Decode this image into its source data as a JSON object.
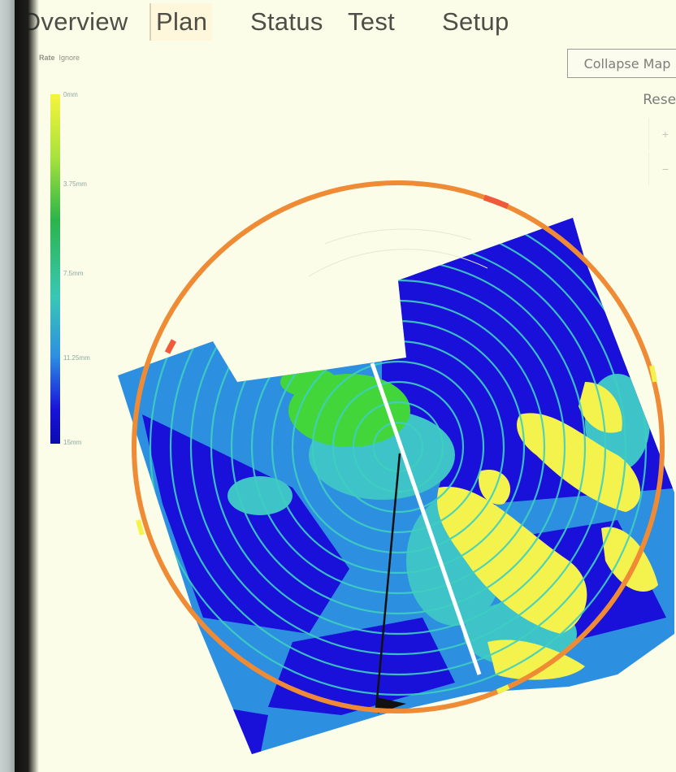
{
  "tabs": [
    {
      "label": "Overview",
      "active": false
    },
    {
      "label": "Plan",
      "active": true
    },
    {
      "label": "Status",
      "active": false
    },
    {
      "label": "Test",
      "active": false
    },
    {
      "label": "Setup",
      "active": false
    }
  ],
  "rate": {
    "label": "Rate",
    "value": "Ignore"
  },
  "legend": {
    "labels": [
      "0mm",
      "3.75mm",
      "7.5mm",
      "11.25mm",
      "15mm"
    ],
    "colors": [
      "#f6f43c",
      "#a8e23c",
      "#2bb44a",
      "#39c7b6",
      "#2d8fe0",
      "#1914d8"
    ]
  },
  "controls": {
    "collapse_map": "Collapse Map",
    "reset": "Reset",
    "zoom_in": "+",
    "zoom_out": "−"
  },
  "map": {
    "field_colors": {
      "deep": "#1910d9",
      "mid": "#2d8fe0",
      "light": "#3ec3c8",
      "green": "#43d63a",
      "yellow": "#f4f24d"
    },
    "pivot_ring_color": "#ef8a35",
    "pivot_arm_color": "#111111",
    "track_color": "#3fd0c0"
  }
}
